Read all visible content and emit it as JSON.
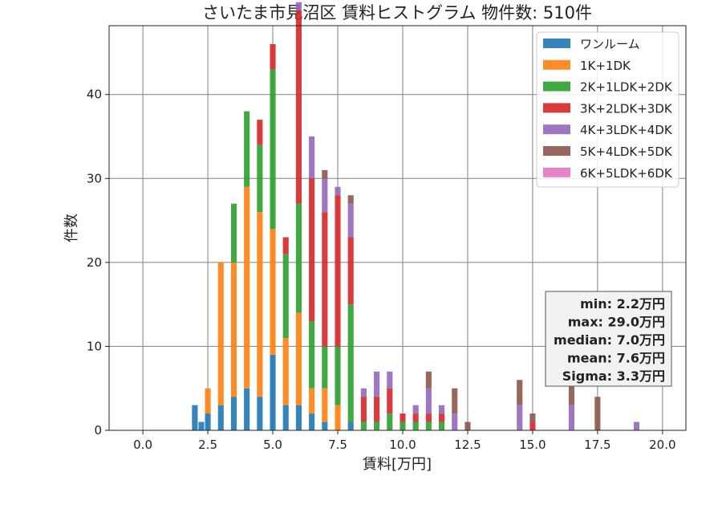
{
  "chart_data": {
    "type": "bar",
    "stacked": true,
    "title": "さいたま市見沼区 賃料ヒストグラム  物件数: 510件",
    "xlabel": "賃料[万円]",
    "ylabel": "件数",
    "xlim": [
      -1.3,
      20.9
    ],
    "ylim": [
      0,
      48.2
    ],
    "xticks": [
      0.0,
      2.5,
      5.0,
      7.5,
      10.0,
      12.5,
      15.0,
      17.5,
      20.0
    ],
    "xtick_labels": [
      "0.0",
      "2.5",
      "5.0",
      "7.5",
      "10.0",
      "12.5",
      "15.0",
      "17.5",
      "20.0"
    ],
    "yticks": [
      0,
      10,
      20,
      30,
      40
    ],
    "ytick_labels": [
      "0",
      "10",
      "20",
      "30",
      "40"
    ],
    "grid": true,
    "legend_position": "top-right",
    "bin_width": 0.25,
    "x": [
      2.0,
      2.25,
      2.5,
      2.75,
      3.0,
      3.25,
      3.5,
      3.75,
      4.0,
      4.25,
      4.5,
      4.75,
      5.0,
      5.25,
      5.5,
      5.75,
      6.0,
      6.25,
      6.5,
      6.75,
      7.0,
      7.25,
      7.5,
      7.75,
      8.0,
      8.25,
      8.5,
      8.75,
      9.0,
      9.25,
      9.5,
      9.75,
      10.0,
      10.25,
      10.5,
      10.75,
      11.0,
      11.25,
      11.5,
      11.75,
      12.0,
      12.25,
      12.5,
      12.75,
      13.0,
      13.25,
      13.5,
      13.75,
      14.0,
      14.25,
      14.5,
      14.75,
      15.0,
      15.25,
      15.5,
      15.75,
      16.0,
      16.25,
      16.5,
      16.75,
      17.0,
      17.25,
      17.5,
      17.75,
      18.0,
      18.25,
      18.5,
      18.75,
      19.0,
      19.25,
      19.5
    ],
    "series": [
      {
        "name": "ワンルーム",
        "color": "#1f77b4",
        "values": [
          3,
          1,
          2,
          0,
          3,
          0,
          4,
          0,
          5,
          0,
          4,
          0,
          9,
          0,
          3,
          0,
          3,
          0,
          2,
          0,
          1,
          0,
          0,
          0,
          1,
          0,
          0,
          0,
          0,
          0,
          0,
          0,
          0,
          0,
          0,
          0,
          0,
          0,
          0,
          0,
          0,
          0,
          0,
          0,
          0,
          0,
          0,
          0,
          0,
          0,
          0,
          0,
          0,
          0,
          0,
          0,
          0,
          0,
          0,
          0,
          0,
          0,
          0,
          0,
          0,
          0,
          0,
          0,
          0,
          0,
          0
        ]
      },
      {
        "name": "1K+1DK",
        "color": "#ff7f0e",
        "values": [
          0,
          0,
          3,
          0,
          17,
          0,
          16,
          0,
          24,
          0,
          22,
          0,
          15,
          0,
          8,
          0,
          11,
          0,
          3,
          0,
          4,
          0,
          3,
          0,
          0,
          0,
          0,
          0,
          0,
          0,
          0,
          0,
          0,
          0,
          0,
          0,
          0,
          0,
          0,
          0,
          0,
          0,
          0,
          0,
          0,
          0,
          0,
          0,
          0,
          0,
          0,
          0,
          0,
          0,
          0,
          0,
          0,
          0,
          0,
          0,
          0,
          0,
          0,
          0,
          0,
          0,
          0,
          0,
          0,
          0,
          0
        ]
      },
      {
        "name": "2K+1LDK+2DK",
        "color": "#2ca02c",
        "values": [
          0,
          0,
          0,
          0,
          0,
          0,
          7,
          0,
          9,
          0,
          8,
          0,
          19,
          0,
          10,
          0,
          13,
          0,
          8,
          0,
          5,
          0,
          7,
          0,
          14,
          0,
          1,
          0,
          1,
          0,
          2,
          0,
          1,
          0,
          1,
          0,
          1,
          0,
          1,
          0,
          0,
          0,
          0,
          0,
          0,
          0,
          0,
          0,
          0,
          0,
          0,
          0,
          0,
          0,
          0,
          0,
          0,
          0,
          0,
          0,
          0,
          0,
          0,
          0,
          0,
          0,
          0,
          0,
          0,
          0,
          0
        ]
      },
      {
        "name": "3K+2LDK+3DK",
        "color": "#d62728",
        "values": [
          0,
          0,
          0,
          0,
          0,
          0,
          0,
          0,
          0,
          0,
          3,
          0,
          3,
          0,
          2,
          0,
          23,
          0,
          17,
          0,
          16,
          0,
          18,
          0,
          8,
          0,
          3,
          0,
          3,
          0,
          3,
          0,
          1,
          0,
          1,
          0,
          1,
          0,
          1,
          0,
          0,
          0,
          0,
          0,
          0,
          0,
          0,
          0,
          0,
          0,
          0,
          0,
          1,
          0,
          0,
          0,
          0,
          0,
          0,
          0,
          0,
          0,
          0,
          0,
          0,
          0,
          0,
          0,
          0,
          0,
          0
        ]
      },
      {
        "name": "4K+3LDK+4DK",
        "color": "#9467bd",
        "values": [
          0,
          0,
          0,
          0,
          0,
          0,
          0,
          0,
          0,
          0,
          0,
          0,
          0,
          0,
          0,
          0,
          1,
          0,
          5,
          0,
          4,
          0,
          1,
          0,
          4,
          0,
          1,
          0,
          3,
          0,
          2,
          0,
          0,
          0,
          1,
          0,
          3,
          0,
          1,
          0,
          2,
          0,
          0,
          0,
          0,
          0,
          0,
          0,
          0,
          0,
          3,
          0,
          0,
          0,
          0,
          0,
          0,
          0,
          3,
          0,
          0,
          0,
          0,
          0,
          0,
          0,
          0,
          0,
          1,
          0,
          0
        ]
      },
      {
        "name": "5K+4LDK+5DK",
        "color": "#8c564b",
        "values": [
          0,
          0,
          0,
          0,
          0,
          0,
          0,
          0,
          0,
          0,
          0,
          0,
          0,
          0,
          0,
          0,
          0,
          0,
          0,
          0,
          1,
          0,
          0,
          0,
          1,
          0,
          0,
          0,
          0,
          0,
          0,
          0,
          0,
          0,
          0,
          0,
          2,
          0,
          0,
          0,
          3,
          0,
          1,
          0,
          0,
          0,
          0,
          0,
          0,
          0,
          3,
          0,
          1,
          0,
          0,
          0,
          0,
          0,
          3,
          0,
          0,
          0,
          4,
          0,
          0,
          0,
          0,
          0,
          0,
          0,
          0
        ]
      },
      {
        "name": "6K+5LDK+6DK",
        "color": "#e377c2",
        "values": [
          0,
          0,
          0,
          0,
          0,
          0,
          0,
          0,
          0,
          0,
          0,
          0,
          0,
          0,
          0,
          0,
          0,
          0,
          0,
          0,
          0,
          0,
          0,
          0,
          0,
          0,
          0,
          0,
          0,
          0,
          0,
          0,
          0,
          0,
          0,
          0,
          0,
          0,
          0,
          0,
          0,
          0,
          0,
          0,
          0,
          0,
          0,
          0,
          0,
          0,
          0,
          0,
          0,
          0,
          0,
          0,
          0,
          0,
          0,
          0,
          0,
          0,
          0,
          0,
          0,
          0,
          0,
          0,
          0,
          0,
          0
        ]
      }
    ],
    "stats_box": [
      "min: 2.2万円",
      "max: 29.0万円",
      "median: 7.0万円",
      "mean: 7.6万円",
      "Sigma: 3.3万円"
    ]
  }
}
